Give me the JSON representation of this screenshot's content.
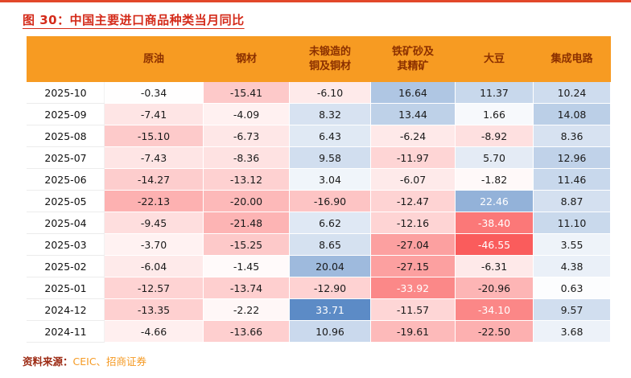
{
  "title": "图 30：中国主要进口商品种类当月同比",
  "source": {
    "label": "资料来源：",
    "value": "CEIC、招商证券"
  },
  "heatmap": {
    "positive_max_color": "#5b8ac6",
    "negative_max_color": "#fa5a5a",
    "positive_scale_max": 34,
    "negative_scale_max": 47,
    "white_text_threshold": 0.65,
    "header_bg": "#f79b22",
    "header_text": "#8b3000",
    "title_color": "#d42b1a"
  },
  "chart_data": {
    "type": "table",
    "title": "中国主要进口商品种类当月同比",
    "columns": [
      "原油",
      "钢材",
      "未锻造的\n铜及铜材",
      "铁矿砂及\n其精矿",
      "大豆",
      "集成电路"
    ],
    "rows": [
      {
        "date": "2025-10",
        "values": [
          -0.34,
          -15.41,
          -6.1,
          16.64,
          11.37,
          10.24
        ]
      },
      {
        "date": "2025-09",
        "values": [
          -7.41,
          -4.09,
          8.32,
          13.44,
          1.66,
          14.08
        ]
      },
      {
        "date": "2025-08",
        "values": [
          -15.1,
          -6.73,
          6.43,
          -6.24,
          -8.92,
          8.36
        ]
      },
      {
        "date": "2025-07",
        "values": [
          -7.43,
          -8.36,
          9.58,
          -11.97,
          5.7,
          12.96
        ]
      },
      {
        "date": "2025-06",
        "values": [
          -14.27,
          -13.12,
          3.04,
          -6.07,
          -1.82,
          11.46
        ]
      },
      {
        "date": "2025-05",
        "values": [
          -22.13,
          -20.0,
          -16.9,
          -12.47,
          22.46,
          8.87
        ]
      },
      {
        "date": "2025-04",
        "values": [
          -9.45,
          -21.48,
          6.62,
          -12.16,
          -38.4,
          11.1
        ]
      },
      {
        "date": "2025-03",
        "values": [
          -3.7,
          -15.25,
          8.65,
          -27.04,
          -46.55,
          3.55
        ]
      },
      {
        "date": "2025-02",
        "values": [
          -6.04,
          -1.45,
          20.04,
          -27.15,
          -6.31,
          4.38
        ]
      },
      {
        "date": "2025-01",
        "values": [
          -12.57,
          -13.74,
          -12.9,
          -33.92,
          -20.96,
          0.63
        ]
      },
      {
        "date": "2024-12",
        "values": [
          -13.35,
          -2.22,
          33.71,
          -11.57,
          -34.1,
          9.57
        ]
      },
      {
        "date": "2024-11",
        "values": [
          -4.66,
          -13.66,
          10.96,
          -19.61,
          -22.5,
          3.68
        ]
      }
    ]
  }
}
